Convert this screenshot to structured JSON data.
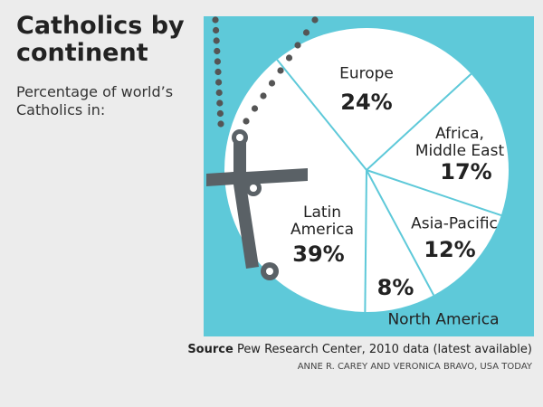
{
  "chart_data": {
    "type": "pie",
    "title": "Catholics by continent",
    "subtitle": "Percentage of world’s Catholics in:",
    "categories": [
      "Europe",
      "Africa, Middle East",
      "Asia-Pacific",
      "North America",
      "Latin America"
    ],
    "values": [
      24,
      17,
      12,
      8,
      39
    ],
    "value_labels": [
      "24%",
      "17%",
      "12%",
      "8%",
      "39%"
    ],
    "color": "#ffffff",
    "source_label": "Source",
    "source": "Pew Research Center, 2010 data (latest available)",
    "credit": "ANNE R. CAREY AND VERONICA BRAVO, USA TODAY"
  }
}
